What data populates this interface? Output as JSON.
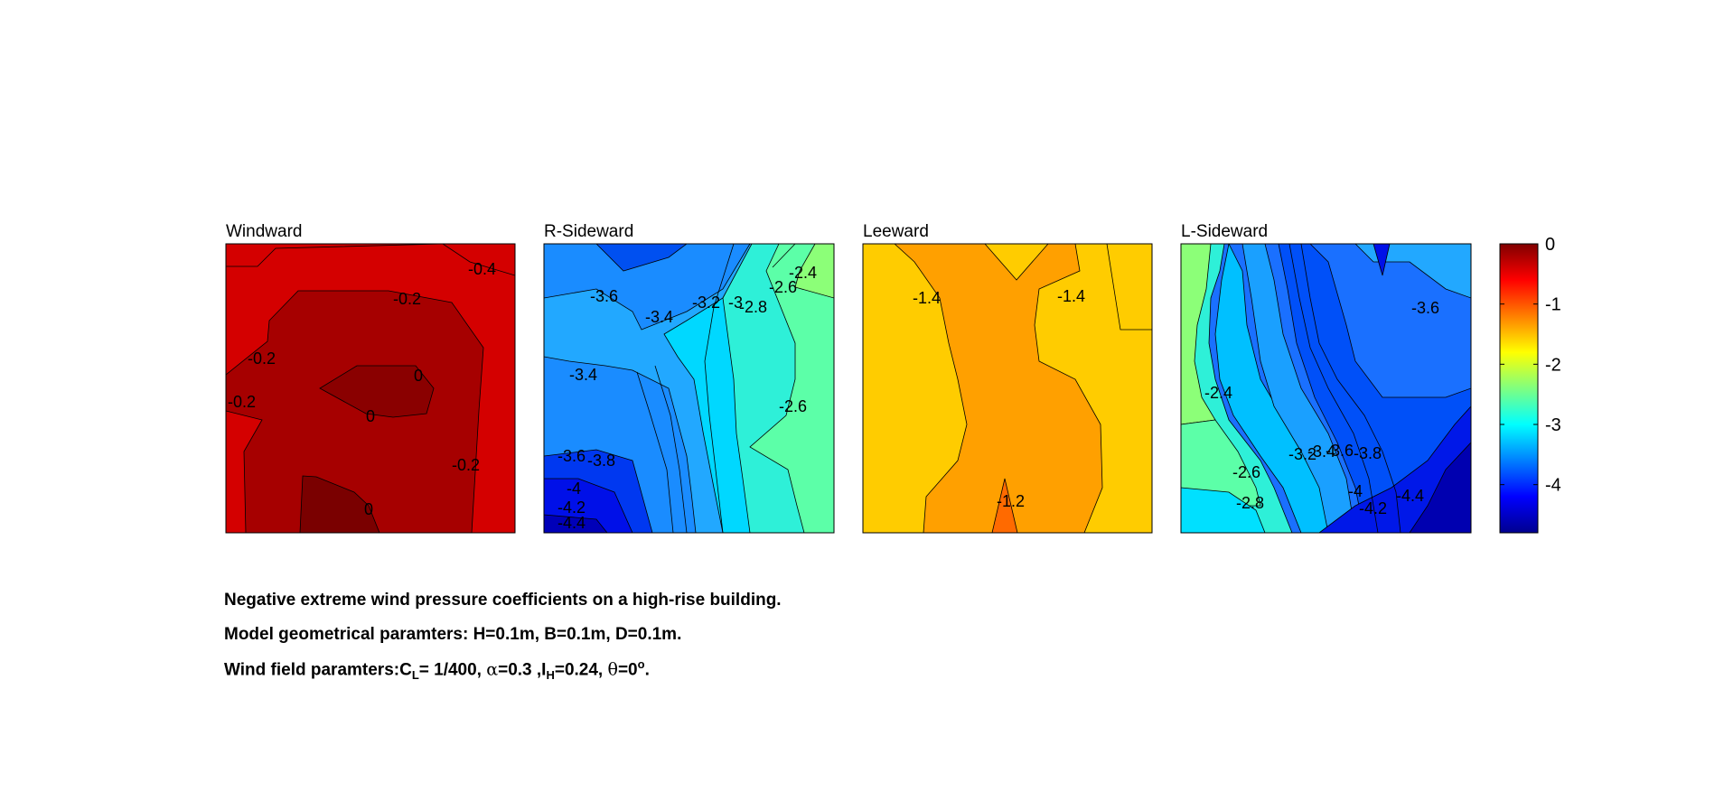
{
  "chart_data": {
    "type": "contour",
    "colormap": "jet",
    "colorbar": {
      "ticks": [
        0,
        -1,
        -2,
        -3,
        -4
      ],
      "range": [
        -4.8,
        0
      ]
    },
    "panels": [
      {
        "title": "Windward",
        "levels": [
          -0.4,
          -0.2,
          0
        ],
        "fills": [
          "#d40000",
          "#a60000",
          "#8a0000",
          "#7a0000"
        ],
        "labels": [
          "-0.4",
          "-0.2",
          "-0.2",
          "-0.2",
          "0",
          "0",
          "-0.2",
          "0"
        ]
      },
      {
        "title": "R-Sideward",
        "levels": [
          -4.4,
          -4.2,
          -4,
          -3.8,
          -3.6,
          -3.4,
          -3.2,
          -3,
          -2.8,
          -2.6,
          -2.4
        ],
        "labels": [
          "-3.6",
          "-3.4",
          "-3.2",
          "-3",
          "-2.8",
          "-2.6",
          "-2.4",
          "-3.4",
          "-2.6",
          "-3.6",
          "-3.8",
          "-4",
          "-4.2",
          "-4.4"
        ]
      },
      {
        "title": "Leeward",
        "levels": [
          -1.4,
          -1.2
        ],
        "labels": [
          "-1.4",
          "-1.4",
          "-1.2"
        ]
      },
      {
        "title": "L-Sideward",
        "levels": [
          -4.4,
          -4.2,
          -4,
          -3.8,
          -3.6,
          -3.4,
          -3.2,
          -3,
          -2.8,
          -2.6,
          -2.4
        ],
        "labels": [
          "-3.6",
          "-2.4",
          "-3.2",
          "-3.4",
          "-3.6",
          "-3.8",
          "-2.6",
          "-2.8",
          "-4",
          "-4.2",
          "-4.4"
        ]
      }
    ]
  },
  "caption": {
    "line1": "Negative extreme wind pressure coefficients on a high-rise building.",
    "line2": "Model geometrical paramters: H=0.1m, B=0.1m, D=0.1m.",
    "line3_prefix": "Wind field paramters:C",
    "line3_sub_L": "L",
    "line3_mid1": "= 1/400, ",
    "alpha": "α",
    "line3_mid2": "=0.3 ,I",
    "line3_sub_H": "H",
    "line3_mid3": "=0.24, ",
    "theta": "θ",
    "line3_mid4": "=0",
    "line3_sup": "o",
    "line3_end": "."
  }
}
